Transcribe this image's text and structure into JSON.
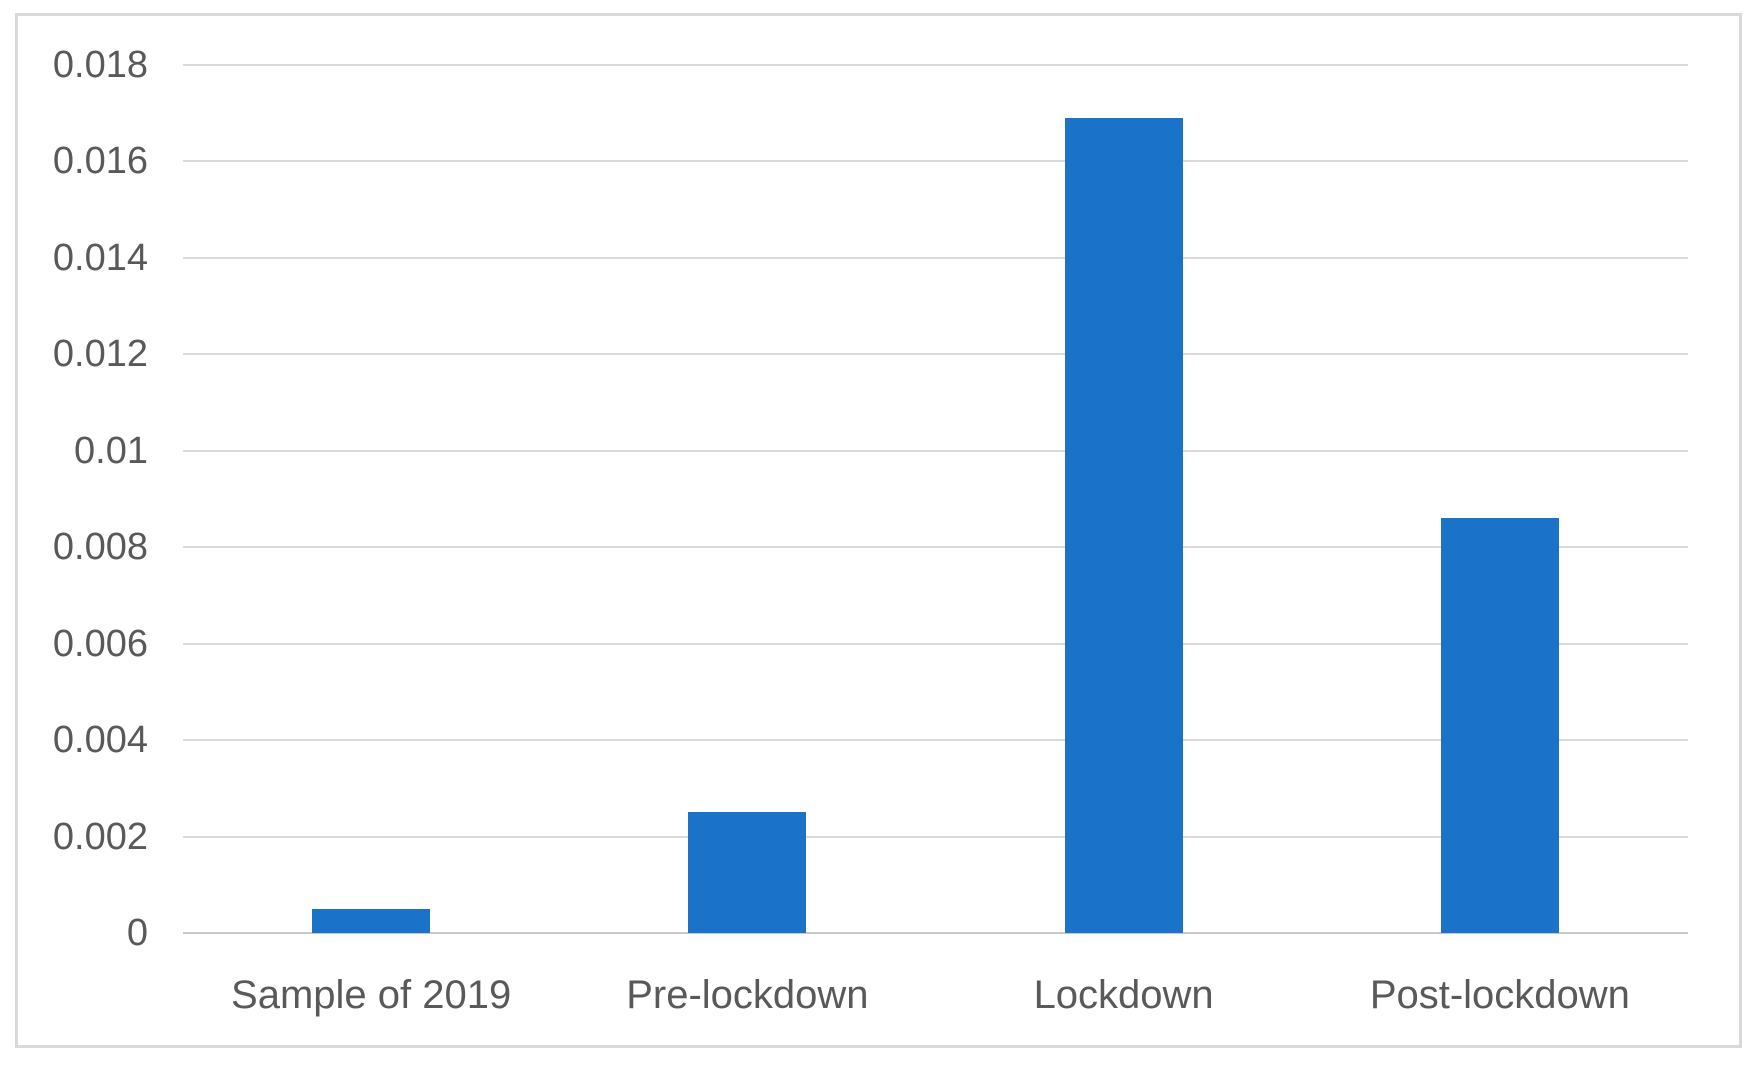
{
  "chart_data": {
    "type": "bar",
    "title": "",
    "xlabel": "",
    "ylabel": "",
    "categories": [
      "Sample of 2019",
      "Pre-lockdown",
      "Lockdown",
      "Post-lockdown"
    ],
    "values": [
      0.0005,
      0.0025,
      0.0169,
      0.0086
    ],
    "ylim": [
      0,
      0.018
    ],
    "ytick_step": 0.002,
    "ytick_labels": [
      "0",
      "0.002",
      "0.004",
      "0.006",
      "0.008",
      "0.01",
      "0.012",
      "0.014",
      "0.016",
      "0.018"
    ],
    "grid": true,
    "legend": false,
    "layout_hints": {
      "gridlines": "horizontal only",
      "legend_position": "none"
    },
    "colors": {
      "bar": "#1A73C8",
      "gridline": "#D9D9D9",
      "axis_line": "#C9C9C9",
      "frame_border": "#D9D9D9",
      "label_text": "#595959",
      "background": "#FFFFFF"
    }
  }
}
